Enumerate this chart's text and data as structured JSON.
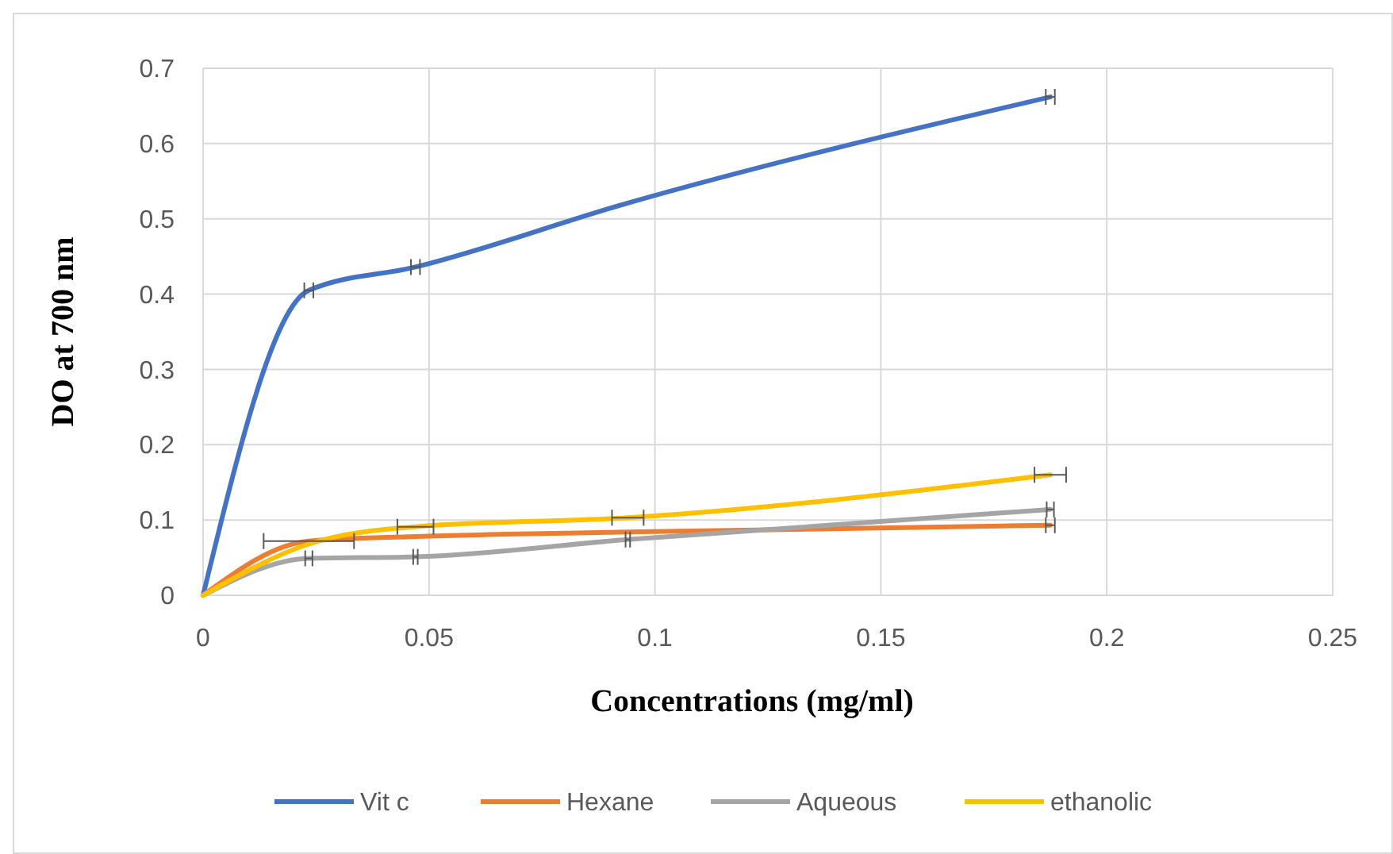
{
  "chart_data": {
    "type": "line",
    "xlabel": "Concentrations (mg/ml)",
    "ylabel": "DO at 700 nm",
    "x": [
      0,
      0.0234,
      0.047,
      0.094,
      0.1875
    ],
    "series": [
      {
        "name": "Vit c",
        "color": "#4472c4",
        "values": [
          0,
          0.405,
          0.436,
          0.521,
          0.662
        ],
        "xerrors": [
          null,
          0.001,
          0.001,
          null,
          0.001
        ]
      },
      {
        "name": "Hexane",
        "color": "#ed7d31",
        "values": [
          0,
          0.072,
          0.078,
          0.084,
          0.093
        ],
        "xerrors": [
          null,
          0.01,
          null,
          null,
          0.001
        ]
      },
      {
        "name": "Aqueous",
        "color": "#a5a5a5",
        "values": [
          0,
          0.049,
          0.051,
          0.074,
          0.114
        ],
        "xerrors": [
          null,
          0.0008,
          0.0005,
          0.0005,
          0.0008
        ]
      },
      {
        "name": "ethanolic",
        "color": "#ffc000",
        "values": [
          0,
          0.068,
          0.091,
          0.103,
          0.16
        ],
        "xerrors": [
          null,
          null,
          0.004,
          0.0035,
          0.0035
        ]
      }
    ],
    "xlim": [
      0,
      0.25
    ],
    "xticks": [
      0,
      0.05,
      0.1,
      0.15,
      0.2,
      0.25
    ],
    "ylim": [
      0,
      0.7
    ],
    "yticks": [
      0,
      0.1,
      0.2,
      0.3,
      0.4,
      0.5,
      0.6,
      0.7
    ],
    "grid": true,
    "legend": "bottom",
    "marker": "none",
    "line_style": "solid"
  }
}
